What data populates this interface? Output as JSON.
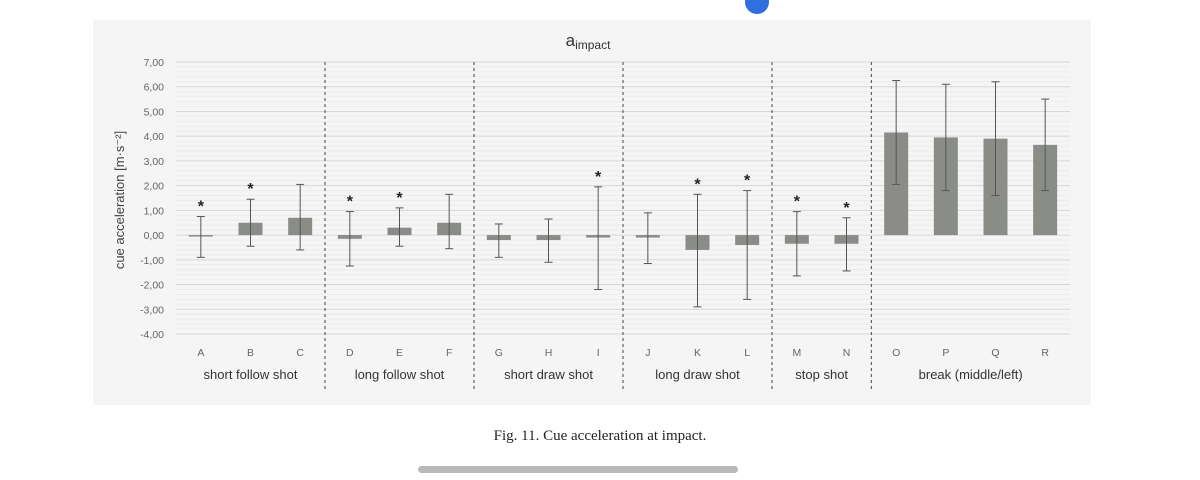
{
  "chart_data": {
    "type": "bar",
    "title_main": "a",
    "title_sub": "impact",
    "ylabel": "cue acceleration  [m·s⁻²]",
    "ylim": [
      -4,
      7
    ],
    "yticks": [
      "7,00",
      "6,00",
      "5,00",
      "4,00",
      "3,00",
      "2,00",
      "1,00",
      "0,00",
      "-1,00",
      "-2,00",
      "-3,00",
      "-4,00"
    ],
    "categories": [
      "A",
      "B",
      "C",
      "D",
      "E",
      "F",
      "G",
      "H",
      "I",
      "J",
      "K",
      "L",
      "M",
      "N",
      "O",
      "P",
      "Q",
      "R"
    ],
    "values": [
      -0.05,
      0.5,
      0.7,
      -0.15,
      0.3,
      0.5,
      -0.2,
      -0.2,
      -0.1,
      -0.1,
      -0.6,
      -0.4,
      -0.35,
      -0.35,
      4.15,
      3.95,
      3.9,
      3.65
    ],
    "err_low": [
      -0.9,
      -0.45,
      -0.6,
      -1.25,
      -0.45,
      -0.55,
      -0.9,
      -1.1,
      -2.2,
      -1.15,
      -2.9,
      -2.6,
      -1.65,
      -1.45,
      2.05,
      1.8,
      1.6,
      1.8
    ],
    "err_high": [
      0.75,
      1.45,
      2.05,
      0.95,
      1.1,
      1.65,
      0.45,
      0.65,
      1.95,
      0.9,
      1.65,
      1.8,
      0.95,
      0.7,
      6.25,
      6.1,
      6.2,
      5.5
    ],
    "significant": [
      true,
      true,
      false,
      true,
      true,
      false,
      false,
      false,
      true,
      false,
      true,
      true,
      true,
      true,
      false,
      false,
      false,
      false
    ],
    "star_symbol": "*",
    "groups": [
      {
        "name": "short follow shot",
        "count": 3
      },
      {
        "name": "long follow shot",
        "count": 3
      },
      {
        "name": "short draw shot",
        "count": 3
      },
      {
        "name": "long draw shot",
        "count": 3
      },
      {
        "name": "stop shot",
        "count": 2
      },
      {
        "name": "break (middle/left)",
        "count": 4
      }
    ],
    "bar_color": "#8a8c88"
  },
  "caption": "Fig. 11. Cue acceleration at impact."
}
